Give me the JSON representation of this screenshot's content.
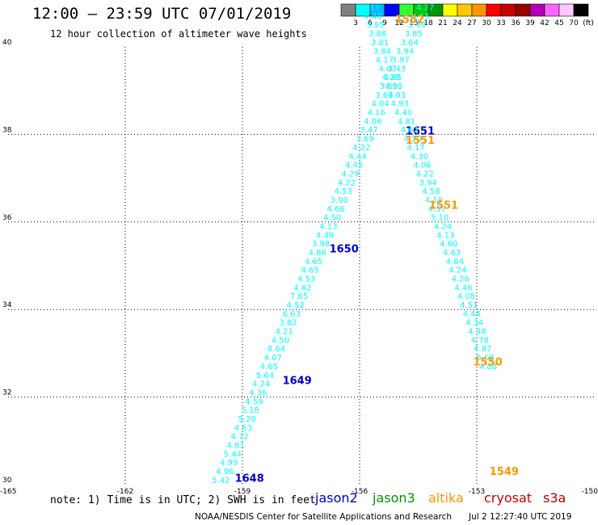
{
  "header": {
    "title": "12:00 – 23:59 UTC 07/01/2019",
    "subtitle": "12 hour collection of altimeter wave heights"
  },
  "colorbar": {
    "ticks": [
      "3",
      "6",
      "9",
      "12",
      "15",
      "18",
      "21",
      "24",
      "27",
      "30",
      "33",
      "36",
      "39",
      "42",
      "45",
      "70",
      "(ft)"
    ],
    "colors": [
      "#808080",
      "#00ffff",
      "#00b4ff",
      "#0000ff",
      "#32ff32",
      "#00c800",
      "#009600",
      "#ffff00",
      "#ffc800",
      "#ff9600",
      "#ff0000",
      "#c80000",
      "#960000",
      "#b400b4",
      "#ff64ff",
      "#ffc8ff",
      "#000000"
    ]
  },
  "footer": {
    "note": "note: 1) Time is in UTC; 2) SWH is in feet",
    "satellites": [
      {
        "name": "jason2",
        "color": "#0000cc"
      },
      {
        "name": "jason3",
        "color": "#009600"
      },
      {
        "name": "altika",
        "color": "#ff9600"
      },
      {
        "name": "cryosat",
        "color": "#cc0000"
      },
      {
        "name": "s3a",
        "color": "#b40000"
      }
    ],
    "credit": "NOAA/NESDIS Center for Satellite Applications and Research",
    "timestamp": "Jul 2 12:27:40 UTC 2019"
  },
  "chart_data": {
    "type": "scatter",
    "title": "12:00 – 23:59 UTC 07/01/2019",
    "subtitle": "12 hour collection of altimeter wave heights",
    "xlim": [
      -165,
      -150
    ],
    "ylim": [
      30,
      40
    ],
    "x_ticks": [
      "-165",
      "-162",
      "-159",
      "-156",
      "-153",
      "-150"
    ],
    "y_ticks": [
      "30",
      "32",
      "34",
      "36",
      "38",
      "40"
    ],
    "grid": true,
    "value_color": "#00ffff",
    "tracks": [
      {
        "name": "jason2-ascending",
        "points": [
          {
            "lon": -159.55,
            "lat": 30.04,
            "v": "5.42"
          },
          {
            "lon": -159.45,
            "lat": 30.24,
            "v": "4.96"
          },
          {
            "lon": -159.35,
            "lat": 30.44,
            "v": "4.99"
          },
          {
            "lon": -159.25,
            "lat": 30.64,
            "v": "5.44"
          },
          {
            "lon": -159.17,
            "lat": 30.84,
            "v": "4.81"
          },
          {
            "lon": -159.07,
            "lat": 31.04,
            "v": "4.72"
          },
          {
            "lon": -158.98,
            "lat": 31.24,
            "v": "4.63"
          },
          {
            "lon": -158.88,
            "lat": 31.44,
            "v": "5.20"
          },
          {
            "lon": -158.8,
            "lat": 31.64,
            "v": "5.18"
          },
          {
            "lon": -158.7,
            "lat": 31.84,
            "v": "4.59"
          },
          {
            "lon": -158.6,
            "lat": 32.04,
            "v": "4.36"
          },
          {
            "lon": -158.52,
            "lat": 32.24,
            "v": "4.24"
          },
          {
            "lon": -158.42,
            "lat": 32.44,
            "v": "5.64"
          },
          {
            "lon": -158.32,
            "lat": 32.64,
            "v": "4.65"
          },
          {
            "lon": -158.22,
            "lat": 32.84,
            "v": "4.07"
          },
          {
            "lon": -158.13,
            "lat": 33.04,
            "v": "8.64"
          },
          {
            "lon": -158.03,
            "lat": 33.24,
            "v": "4.50"
          },
          {
            "lon": -157.93,
            "lat": 33.44,
            "v": "4.21"
          },
          {
            "lon": -157.83,
            "lat": 33.64,
            "v": "3.82"
          },
          {
            "lon": -157.74,
            "lat": 33.84,
            "v": "6.63"
          },
          {
            "lon": -157.64,
            "lat": 34.04,
            "v": "4.52"
          },
          {
            "lon": -157.55,
            "lat": 34.24,
            "v": "7.65"
          },
          {
            "lon": -157.46,
            "lat": 34.44,
            "v": "4.62"
          },
          {
            "lon": -157.36,
            "lat": 34.64,
            "v": "4.53"
          },
          {
            "lon": -157.27,
            "lat": 34.84,
            "v": "4.65"
          },
          {
            "lon": -157.18,
            "lat": 35.04,
            "v": "4.65"
          },
          {
            "lon": -157.08,
            "lat": 35.24,
            "v": "4.86"
          },
          {
            "lon": -156.99,
            "lat": 35.44,
            "v": "3.98"
          },
          {
            "lon": -156.89,
            "lat": 35.64,
            "v": "4.49"
          },
          {
            "lon": -156.8,
            "lat": 35.84,
            "v": "4.13"
          },
          {
            "lon": -156.7,
            "lat": 36.04,
            "v": "4.50"
          },
          {
            "lon": -156.61,
            "lat": 36.24,
            "v": "4.66"
          },
          {
            "lon": -156.52,
            "lat": 36.44,
            "v": "3.90"
          },
          {
            "lon": -156.42,
            "lat": 36.64,
            "v": "4.53"
          },
          {
            "lon": -156.33,
            "lat": 36.84,
            "v": "4.22"
          },
          {
            "lon": -156.24,
            "lat": 37.04,
            "v": "4.29"
          },
          {
            "lon": -156.14,
            "lat": 37.24,
            "v": "4.45"
          },
          {
            "lon": -156.05,
            "lat": 37.44,
            "v": "4.44"
          },
          {
            "lon": -155.95,
            "lat": 37.64,
            "v": "4.22"
          },
          {
            "lon": -155.86,
            "lat": 37.84,
            "v": "3.69"
          },
          {
            "lon": -155.76,
            "lat": 38.04,
            "v": "3.47"
          },
          {
            "lon": -155.66,
            "lat": 38.24,
            "v": "4.06"
          },
          {
            "lon": -155.57,
            "lat": 38.44,
            "v": "4.16"
          },
          {
            "lon": -155.47,
            "lat": 38.64,
            "v": "4.04"
          },
          {
            "lon": -155.37,
            "lat": 38.84,
            "v": "3.63"
          },
          {
            "lon": -155.26,
            "lat": 39.04,
            "v": "3.89"
          },
          {
            "lon": -155.15,
            "lat": 39.24,
            "v": "3.65"
          },
          {
            "lon": -155.05,
            "lat": 39.44,
            "v": "3.43"
          },
          {
            "lon": -154.95,
            "lat": 39.64,
            "v": "3.97"
          },
          {
            "lon": -154.84,
            "lat": 39.84,
            "v": "3.94"
          },
          {
            "lon": -154.72,
            "lat": 40.04,
            "v": "3.64"
          },
          {
            "lon": -154.62,
            "lat": 40.24,
            "v": "3.85"
          },
          {
            "lon": -154.53,
            "lat": 40.44,
            "v": "3.99"
          },
          {
            "lon": -154.43,
            "lat": 40.64,
            "v": "4.15"
          },
          {
            "lon": -154.32,
            "lat": 40.84,
            "v": "4.27"
          }
        ],
        "times": [
          {
            "lon": -158.82,
            "lat": 30.06,
            "t": "1648"
          },
          {
            "lon": -157.6,
            "lat": 32.3,
            "t": "1649"
          },
          {
            "lon": -156.4,
            "lat": 35.3,
            "t": "1650"
          },
          {
            "lon": -154.45,
            "lat": 38.0,
            "t": "1651"
          }
        ]
      },
      {
        "name": "altika-descending",
        "points": [
          {
            "lon": -155.72,
            "lat": 40.84,
            "v": "4.33"
          },
          {
            "lon": -155.66,
            "lat": 40.64,
            "v": "4.40"
          },
          {
            "lon": -155.6,
            "lat": 40.44,
            "v": "3.95"
          },
          {
            "lon": -155.54,
            "lat": 40.24,
            "v": "3.88"
          },
          {
            "lon": -155.48,
            "lat": 40.04,
            "v": "3.81"
          },
          {
            "lon": -155.42,
            "lat": 39.84,
            "v": "3.84"
          },
          {
            "lon": -155.36,
            "lat": 39.64,
            "v": "4.17"
          },
          {
            "lon": -155.28,
            "lat": 39.44,
            "v": "4.07"
          },
          {
            "lon": -155.2,
            "lat": 39.24,
            "v": "4.26"
          },
          {
            "lon": -155.13,
            "lat": 39.04,
            "v": "4.28"
          },
          {
            "lon": -155.05,
            "lat": 38.84,
            "v": "4.03"
          },
          {
            "lon": -154.97,
            "lat": 38.64,
            "v": "4.93"
          },
          {
            "lon": -154.88,
            "lat": 38.44,
            "v": "4.40"
          },
          {
            "lon": -154.8,
            "lat": 38.24,
            "v": "4.81"
          },
          {
            "lon": -154.72,
            "lat": 38.04,
            "v": "4.62"
          },
          {
            "lon": -154.64,
            "lat": 37.84,
            "v": "4.20"
          },
          {
            "lon": -154.56,
            "lat": 37.64,
            "v": "4.17"
          },
          {
            "lon": -154.47,
            "lat": 37.44,
            "v": "4.30"
          },
          {
            "lon": -154.4,
            "lat": 37.24,
            "v": "4.06"
          },
          {
            "lon": -154.33,
            "lat": 37.04,
            "v": "4.22"
          },
          {
            "lon": -154.25,
            "lat": 36.84,
            "v": "3.94"
          },
          {
            "lon": -154.17,
            "lat": 36.64,
            "v": "4.58"
          },
          {
            "lon": -154.1,
            "lat": 36.44,
            "v": "4.19"
          },
          {
            "lon": -154.02,
            "lat": 36.24,
            "v": "4.57"
          },
          {
            "lon": -153.95,
            "lat": 36.04,
            "v": "5.10"
          },
          {
            "lon": -153.87,
            "lat": 35.84,
            "v": "4.24"
          },
          {
            "lon": -153.8,
            "lat": 35.64,
            "v": "4.13"
          },
          {
            "lon": -153.72,
            "lat": 35.44,
            "v": "4.60"
          },
          {
            "lon": -153.64,
            "lat": 35.24,
            "v": "4.63"
          },
          {
            "lon": -153.56,
            "lat": 35.04,
            "v": "4.04"
          },
          {
            "lon": -153.49,
            "lat": 34.84,
            "v": "4.24"
          },
          {
            "lon": -153.42,
            "lat": 34.64,
            "v": "4.26"
          },
          {
            "lon": -153.34,
            "lat": 34.44,
            "v": "4.46"
          },
          {
            "lon": -153.27,
            "lat": 34.24,
            "v": "4.08"
          },
          {
            "lon": -153.2,
            "lat": 34.04,
            "v": "4.51"
          },
          {
            "lon": -153.13,
            "lat": 33.84,
            "v": "4.44"
          },
          {
            "lon": -153.06,
            "lat": 33.64,
            "v": "4.34"
          },
          {
            "lon": -152.99,
            "lat": 33.44,
            "v": "4.48"
          },
          {
            "lon": -152.92,
            "lat": 33.24,
            "v": "4.78"
          },
          {
            "lon": -152.85,
            "lat": 33.04,
            "v": "4.87"
          },
          {
            "lon": -152.78,
            "lat": 32.84,
            "v": "5.08"
          },
          {
            "lon": -152.71,
            "lat": 32.64,
            "v": "4.88"
          }
        ],
        "times": [
          {
            "lon": -154.72,
            "lat": 40.54,
            "t": "1552"
          },
          {
            "lon": -154.45,
            "lat": 37.79,
            "t": "1551"
          },
          {
            "lon": -153.85,
            "lat": 36.3,
            "t": "1551"
          },
          {
            "lon": -152.72,
            "lat": 32.72,
            "t": "1550"
          },
          {
            "lon": -152.3,
            "lat": 30.22,
            "t": "1549"
          }
        ]
      }
    ]
  }
}
